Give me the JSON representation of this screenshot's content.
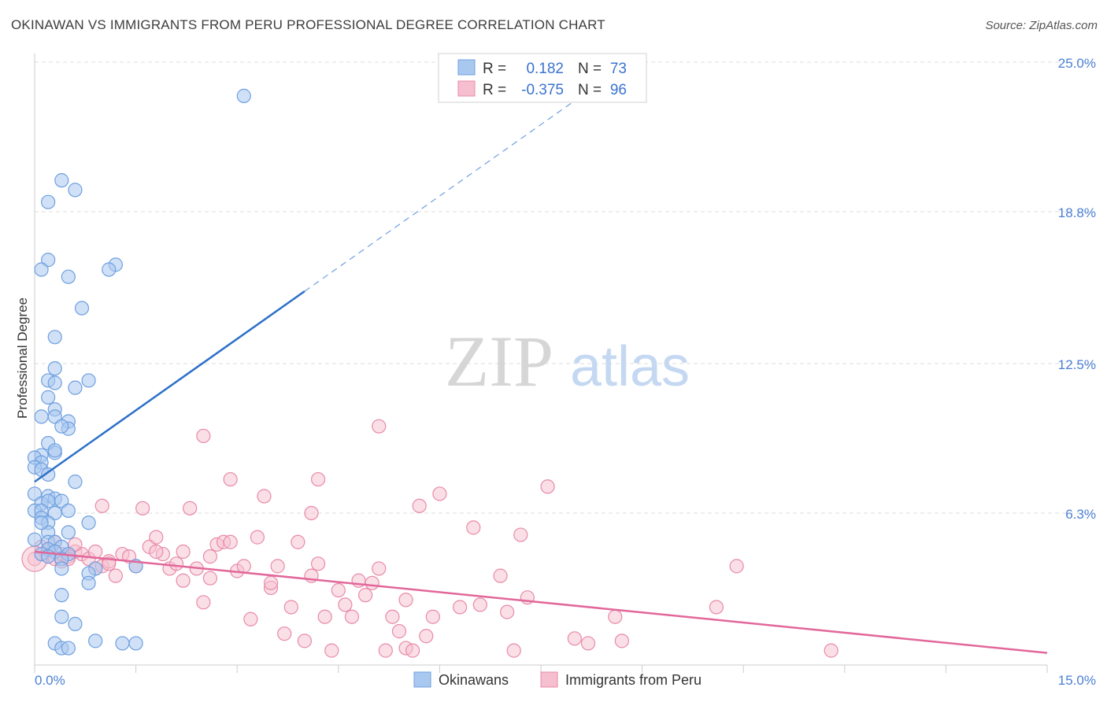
{
  "title": "OKINAWAN VS IMMIGRANTS FROM PERU PROFESSIONAL DEGREE CORRELATION CHART",
  "source": "Source: ZipAtlas.com",
  "colors": {
    "blue_fill": "#a9c8f0",
    "blue_stroke": "#6e9fdf",
    "blue_line": "#2c70c9",
    "pink_fill": "#f6bfd0",
    "pink_stroke": "#e88aa9",
    "pink_line": "#e2679a",
    "grid": "#dddddd",
    "tick_label": "#4a7fd4"
  },
  "chart_data": {
    "type": "scatter",
    "title": "OKINAWAN VS IMMIGRANTS FROM PERU PROFESSIONAL DEGREE CORRELATION CHART",
    "xlabel": "",
    "ylabel": "Professional Degree",
    "xlim": [
      0,
      15
    ],
    "ylim": [
      0,
      25
    ],
    "x_tick_labels": [
      "0.0%",
      "15.0%"
    ],
    "y_ticks": [
      6.3,
      12.5,
      18.8,
      25.0
    ],
    "y_tick_labels": [
      "6.3%",
      "12.5%",
      "18.8%",
      "25.0%"
    ],
    "watermark": {
      "zip": "ZIP",
      "atlas": "atlas"
    },
    "legend": {
      "rows": [
        {
          "r_label": "R =",
          "r_value": "0.182",
          "n_label": "N =",
          "n_value": "73"
        },
        {
          "r_label": "R =",
          "r_value": "-0.375",
          "n_label": "N =",
          "n_value": "96"
        }
      ]
    },
    "series": [
      {
        "name": "Okinawans",
        "trend": {
          "x0": 0.0,
          "y0": 7.6,
          "x1": 4.0,
          "y1": 15.5,
          "dashed_to_x": 8.0,
          "dashed_to_y": 23.4
        },
        "points": [
          [
            3.1,
            23.6
          ],
          [
            0.4,
            20.1
          ],
          [
            0.6,
            19.7
          ],
          [
            0.2,
            19.2
          ],
          [
            0.2,
            16.8
          ],
          [
            0.1,
            16.4
          ],
          [
            1.2,
            16.6
          ],
          [
            1.1,
            16.4
          ],
          [
            0.5,
            16.1
          ],
          [
            0.7,
            14.8
          ],
          [
            0.3,
            13.6
          ],
          [
            0.3,
            12.3
          ],
          [
            0.2,
            11.8
          ],
          [
            0.3,
            11.7
          ],
          [
            0.6,
            11.5
          ],
          [
            0.8,
            11.8
          ],
          [
            0.2,
            11.1
          ],
          [
            0.3,
            10.6
          ],
          [
            0.1,
            10.3
          ],
          [
            0.3,
            10.3
          ],
          [
            0.5,
            10.1
          ],
          [
            0.5,
            9.8
          ],
          [
            0.2,
            9.2
          ],
          [
            0.3,
            8.8
          ],
          [
            0.1,
            8.7
          ],
          [
            0.0,
            8.6
          ],
          [
            0.1,
            8.4
          ],
          [
            0.0,
            8.2
          ],
          [
            0.1,
            8.1
          ],
          [
            0.2,
            7.9
          ],
          [
            0.6,
            7.6
          ],
          [
            0.0,
            7.1
          ],
          [
            0.2,
            7.0
          ],
          [
            0.3,
            6.9
          ],
          [
            0.1,
            6.7
          ],
          [
            0.2,
            6.8
          ],
          [
            0.4,
            6.8
          ],
          [
            0.0,
            6.4
          ],
          [
            0.1,
            6.4
          ],
          [
            0.3,
            6.3
          ],
          [
            0.5,
            6.4
          ],
          [
            0.1,
            6.1
          ],
          [
            0.2,
            5.9
          ],
          [
            0.8,
            5.9
          ],
          [
            0.2,
            5.5
          ],
          [
            0.5,
            5.5
          ],
          [
            0.0,
            5.2
          ],
          [
            0.2,
            5.1
          ],
          [
            0.3,
            5.1
          ],
          [
            0.4,
            4.9
          ],
          [
            0.2,
            4.8
          ],
          [
            0.3,
            4.7
          ],
          [
            0.1,
            4.6
          ],
          [
            0.2,
            4.5
          ],
          [
            0.5,
            4.6
          ],
          [
            0.4,
            4.4
          ],
          [
            0.4,
            4.0
          ],
          [
            1.5,
            4.1
          ],
          [
            0.9,
            4.0
          ],
          [
            0.8,
            3.8
          ],
          [
            0.8,
            3.4
          ],
          [
            0.4,
            2.9
          ],
          [
            0.4,
            2.0
          ],
          [
            0.6,
            1.7
          ],
          [
            0.9,
            1.0
          ],
          [
            0.3,
            0.9
          ],
          [
            0.4,
            0.7
          ],
          [
            0.5,
            0.7
          ],
          [
            1.3,
            0.9
          ],
          [
            1.5,
            0.9
          ],
          [
            0.3,
            8.9
          ],
          [
            0.4,
            9.9
          ],
          [
            0.1,
            5.9
          ]
        ]
      },
      {
        "name": "Immigrants from Peru",
        "trend": {
          "x0": 0.0,
          "y0": 4.7,
          "x1": 15.0,
          "y1": 0.5
        },
        "points": [
          [
            0.1,
            4.6
          ],
          [
            0.2,
            4.5
          ],
          [
            0.3,
            4.4
          ],
          [
            0.4,
            4.3
          ],
          [
            0.5,
            4.5
          ],
          [
            0.2,
            4.8
          ],
          [
            0.3,
            5.1
          ],
          [
            0.1,
            4.9
          ],
          [
            0.6,
            4.7
          ],
          [
            0.7,
            4.6
          ],
          [
            0.8,
            4.4
          ],
          [
            0.9,
            4.0
          ],
          [
            1.0,
            4.1
          ],
          [
            1.1,
            4.3
          ],
          [
            1.2,
            3.7
          ],
          [
            1.3,
            4.6
          ],
          [
            1.4,
            4.5
          ],
          [
            1.5,
            4.1
          ],
          [
            1.6,
            6.5
          ],
          [
            1.7,
            4.9
          ],
          [
            1.8,
            5.3
          ],
          [
            1.9,
            4.6
          ],
          [
            2.0,
            4.0
          ],
          [
            2.1,
            4.2
          ],
          [
            2.2,
            3.5
          ],
          [
            2.3,
            6.5
          ],
          [
            2.4,
            4.0
          ],
          [
            2.5,
            2.6
          ],
          [
            2.6,
            3.6
          ],
          [
            2.7,
            5.0
          ],
          [
            2.8,
            5.1
          ],
          [
            2.9,
            5.1
          ],
          [
            3.0,
            3.9
          ],
          [
            3.1,
            4.1
          ],
          [
            3.2,
            1.9
          ],
          [
            3.3,
            5.3
          ],
          [
            3.4,
            7.0
          ],
          [
            3.5,
            3.2
          ],
          [
            3.6,
            4.1
          ],
          [
            3.7,
            1.3
          ],
          [
            3.8,
            2.4
          ],
          [
            3.9,
            5.1
          ],
          [
            4.0,
            1.0
          ],
          [
            4.1,
            6.3
          ],
          [
            4.2,
            4.2
          ],
          [
            4.3,
            2.0
          ],
          [
            4.4,
            0.6
          ],
          [
            4.5,
            3.1
          ],
          [
            4.6,
            2.5
          ],
          [
            4.7,
            2.0
          ],
          [
            4.8,
            3.5
          ],
          [
            4.9,
            2.9
          ],
          [
            5.0,
            3.4
          ],
          [
            5.1,
            4.0
          ],
          [
            5.2,
            0.6
          ],
          [
            5.3,
            2.0
          ],
          [
            5.4,
            1.4
          ],
          [
            5.5,
            0.7
          ],
          [
            5.6,
            0.6
          ],
          [
            5.7,
            6.6
          ],
          [
            5.8,
            1.2
          ],
          [
            5.9,
            2.0
          ],
          [
            6.0,
            7.1
          ],
          [
            6.3,
            2.4
          ],
          [
            6.5,
            5.7
          ],
          [
            6.6,
            2.5
          ],
          [
            6.9,
            3.7
          ],
          [
            7.0,
            2.2
          ],
          [
            7.1,
            0.6
          ],
          [
            7.2,
            5.4
          ],
          [
            7.3,
            2.8
          ],
          [
            7.6,
            7.4
          ],
          [
            8.0,
            1.1
          ],
          [
            8.2,
            0.9
          ],
          [
            8.6,
            2.0
          ],
          [
            8.7,
            1.0
          ],
          [
            10.4,
            4.1
          ],
          [
            10.1,
            2.4
          ],
          [
            11.8,
            0.6
          ],
          [
            2.5,
            9.5
          ],
          [
            5.1,
            9.9
          ],
          [
            4.2,
            7.7
          ],
          [
            2.9,
            7.7
          ],
          [
            1.0,
            6.6
          ],
          [
            0.0,
            4.4
          ],
          [
            0.4,
            4.6
          ],
          [
            0.5,
            4.4
          ],
          [
            1.1,
            4.2
          ],
          [
            1.8,
            4.7
          ],
          [
            2.6,
            4.5
          ],
          [
            3.5,
            3.4
          ],
          [
            4.1,
            3.7
          ],
          [
            2.2,
            4.7
          ],
          [
            0.9,
            4.7
          ],
          [
            0.6,
            5.0
          ],
          [
            5.5,
            2.7
          ]
        ]
      }
    ]
  },
  "bottom_legend": {
    "items": [
      "Okinawans",
      "Immigrants from Peru"
    ]
  }
}
